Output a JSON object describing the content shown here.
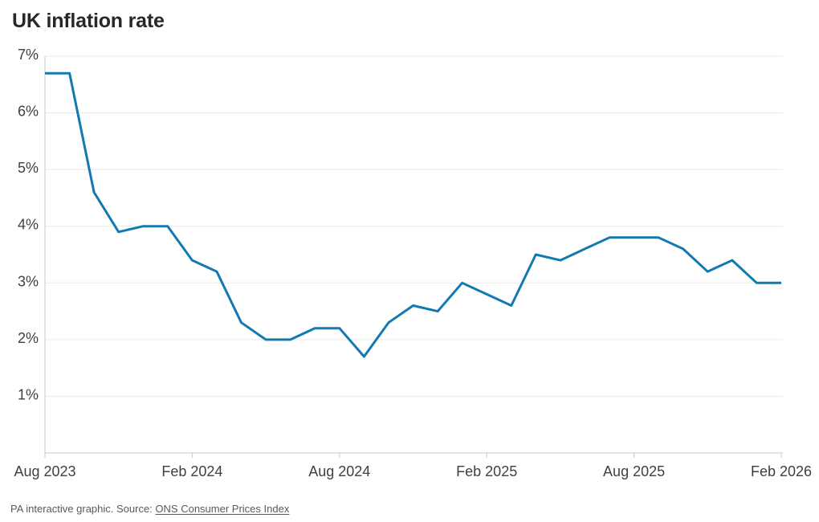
{
  "title": "UK inflation rate",
  "footer": {
    "prefix": "PA interactive graphic. Source: ",
    "link_text": "ONS Consumer Prices Index"
  },
  "colors": {
    "background": "#ffffff",
    "line": "#1379b1",
    "grid": "#e9e9e9",
    "axis": "#c9c9c9",
    "tick_label": "#404040",
    "title": "#282828",
    "footer": "#595959"
  },
  "chart_data": {
    "type": "line",
    "title": "UK inflation rate",
    "unit": "%",
    "x": [
      "Aug 2023",
      "Sep 2023",
      "Oct 2023",
      "Nov 2023",
      "Dec 2023",
      "Jan 2024",
      "Feb 2024",
      "Mar 2024",
      "Apr 2024",
      "May 2024",
      "Jun 2024",
      "Jul 2024",
      "Aug 2024",
      "Sep 2024",
      "Oct 2024",
      "Nov 2024",
      "Dec 2024",
      "Jan 2025",
      "Feb 2025",
      "Mar 2025",
      "Apr 2025",
      "May 2025",
      "Jun 2025",
      "Jul 2025",
      "Aug 2025",
      "Sep 2025",
      "Oct 2025",
      "Nov 2025",
      "Dec 2025",
      "Jan 2026",
      "Feb 2026"
    ],
    "values": [
      6.7,
      6.7,
      4.6,
      3.9,
      4.0,
      4.0,
      3.4,
      3.2,
      2.3,
      2.0,
      2.0,
      2.2,
      2.2,
      1.7,
      2.3,
      2.6,
      2.5,
      3.0,
      2.8,
      2.6,
      3.5,
      3.4,
      3.6,
      3.8,
      3.8,
      3.8,
      3.6,
      3.2,
      3.4,
      3.0,
      3.0
    ],
    "ylim": [
      0,
      7
    ],
    "y_ticks": [
      {
        "value": 1,
        "label": "1%"
      },
      {
        "value": 2,
        "label": "2%"
      },
      {
        "value": 3,
        "label": "3%"
      },
      {
        "value": 4,
        "label": "4%"
      },
      {
        "value": 5,
        "label": "5%"
      },
      {
        "value": 6,
        "label": "6%"
      },
      {
        "value": 7,
        "label": "7%"
      }
    ],
    "x_ticks": [
      {
        "index": 0,
        "label": "Aug 2023"
      },
      {
        "index": 6,
        "label": "Feb 2024"
      },
      {
        "index": 12,
        "label": "Aug 2024"
      },
      {
        "index": 18,
        "label": "Feb 2025"
      },
      {
        "index": 24,
        "label": "Aug 2025"
      },
      {
        "index": 30,
        "label": "Feb 2026"
      }
    ],
    "grid": "horizontal",
    "legend": "none",
    "source": "ONS Consumer Prices Index"
  }
}
